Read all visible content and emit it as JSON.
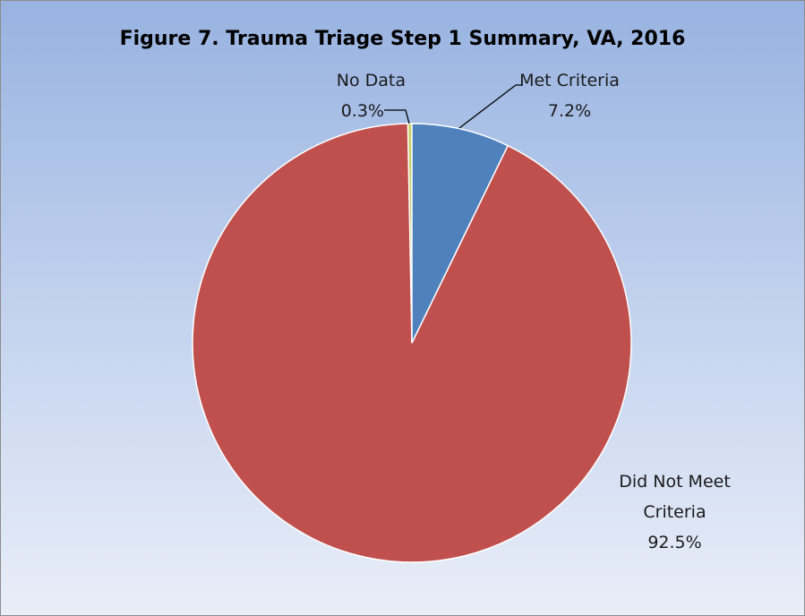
{
  "chart_data": {
    "type": "pie",
    "title": "Figure 7. Trauma Triage Step 1 Summary, VA, 2016",
    "categories": [
      "Met Criteria",
      "Did Not Meet Criteria",
      "No Data"
    ],
    "values": [
      7.2,
      92.5,
      0.3
    ],
    "value_labels": [
      "7.2%",
      "92.5%",
      "0.3%"
    ],
    "colors": [
      "#4f81bd",
      "#c0504d",
      "#c3cf63"
    ]
  }
}
